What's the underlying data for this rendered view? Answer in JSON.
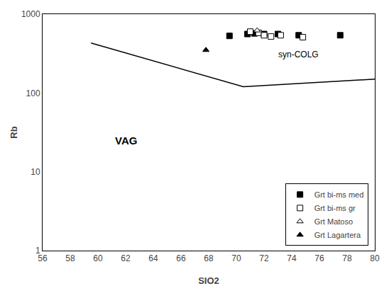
{
  "chart_data": {
    "type": "scatter",
    "xlabel": "SIO2",
    "ylabel": "Rb",
    "log": "y",
    "grid": false,
    "legend": "lower right",
    "xlim": [
      56,
      80
    ],
    "ylim": [
      1,
      1000
    ],
    "xticks": [
      56,
      58,
      60,
      62,
      64,
      66,
      68,
      70,
      72,
      74,
      76,
      78,
      80
    ],
    "yticks": [
      1,
      10,
      100,
      1000
    ],
    "boundary_line": {
      "x": [
        59.5,
        70.5,
        80
      ],
      "y": [
        430,
        120,
        150
      ],
      "color": "black"
    },
    "annotations": [
      {
        "text": "VAG",
        "x": 62,
        "y": 20
      },
      {
        "text": "syn-COLG",
        "x": 74.5,
        "y": 310
      }
    ],
    "series": [
      {
        "name": "Grt bi-ms med",
        "marker": "square",
        "color": "black",
        "x": [
          69.5,
          70.8,
          71.3,
          72.0,
          73.0,
          74.5,
          77.5
        ],
        "values": [
          530,
          560,
          570,
          560,
          560,
          540,
          540
        ]
      },
      {
        "name": "Grt bi-ms gr",
        "marker": "square",
        "color": "white",
        "x": [
          71.0,
          71.6,
          72.0,
          72.5,
          73.2,
          74.8
        ],
        "values": [
          600,
          580,
          540,
          520,
          540,
          510
        ]
      },
      {
        "name": "Grt Matoso",
        "marker": "triangle-up",
        "color": "white",
        "x": [
          71.5
        ],
        "values": [
          620
        ]
      },
      {
        "name": "Grt Lagartera",
        "marker": "triangle-up",
        "color": "black",
        "x": [
          67.8
        ],
        "values": [
          350
        ]
      }
    ]
  }
}
